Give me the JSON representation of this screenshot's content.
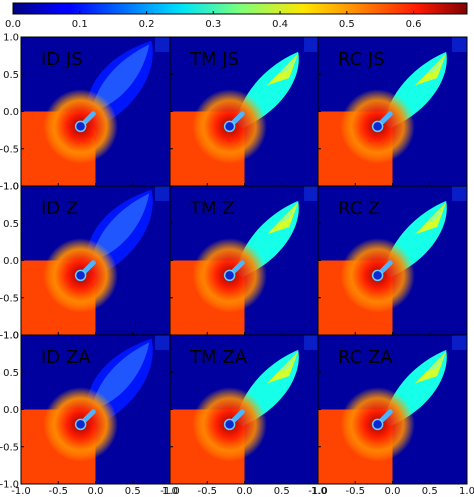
{
  "chart_data": {
    "type": "heatmap",
    "title": "",
    "colorbar": {
      "colormap": "jet",
      "vmin": 0.0,
      "vmax": 0.68,
      "ticks": [
        0.0,
        0.1,
        0.2,
        0.3,
        0.4,
        0.5,
        0.6
      ],
      "tick_labels": [
        "0.0",
        "0.1",
        "0.2",
        "0.3",
        "0.4",
        "0.5",
        "0.6"
      ]
    },
    "grid": {
      "rows": 3,
      "cols": 3
    },
    "panels": [
      {
        "label": "ID JS",
        "row": 0,
        "col": 0
      },
      {
        "label": "TM JS",
        "row": 0,
        "col": 1
      },
      {
        "label": "RC JS",
        "row": 0,
        "col": 2
      },
      {
        "label": "ID Z",
        "row": 1,
        "col": 0
      },
      {
        "label": "TM Z",
        "row": 1,
        "col": 1
      },
      {
        "label": "RC Z",
        "row": 1,
        "col": 2
      },
      {
        "label": "ID ZA",
        "row": 2,
        "col": 0
      },
      {
        "label": "TM ZA",
        "row": 2,
        "col": 1
      },
      {
        "label": "RC ZA",
        "row": 2,
        "col": 2
      }
    ],
    "x_axis": {
      "range": [
        -1.0,
        1.0
      ],
      "ticks": [
        -1.0,
        -0.5,
        0.0,
        0.5,
        1.0
      ],
      "tick_labels": [
        "-1.0",
        "-0.5",
        "0.0",
        "0.5",
        "1.0"
      ]
    },
    "y_axis": {
      "range": [
        -1.0,
        1.0
      ],
      "ticks": [
        1.0,
        0.5,
        0.0,
        -0.5,
        -1.0
      ],
      "tick_labels": [
        "1.0",
        "0.5",
        "0.0",
        "-0.5",
        "-1.0"
      ]
    },
    "field_levels": {
      "background": 0.02,
      "quadrant": 0.55,
      "ID_plume": 0.1,
      "TM_RC_plume": 0.27,
      "TM_RC_jet": 0.42,
      "source_hot": 0.68,
      "source_warm": 0.62
    }
  }
}
